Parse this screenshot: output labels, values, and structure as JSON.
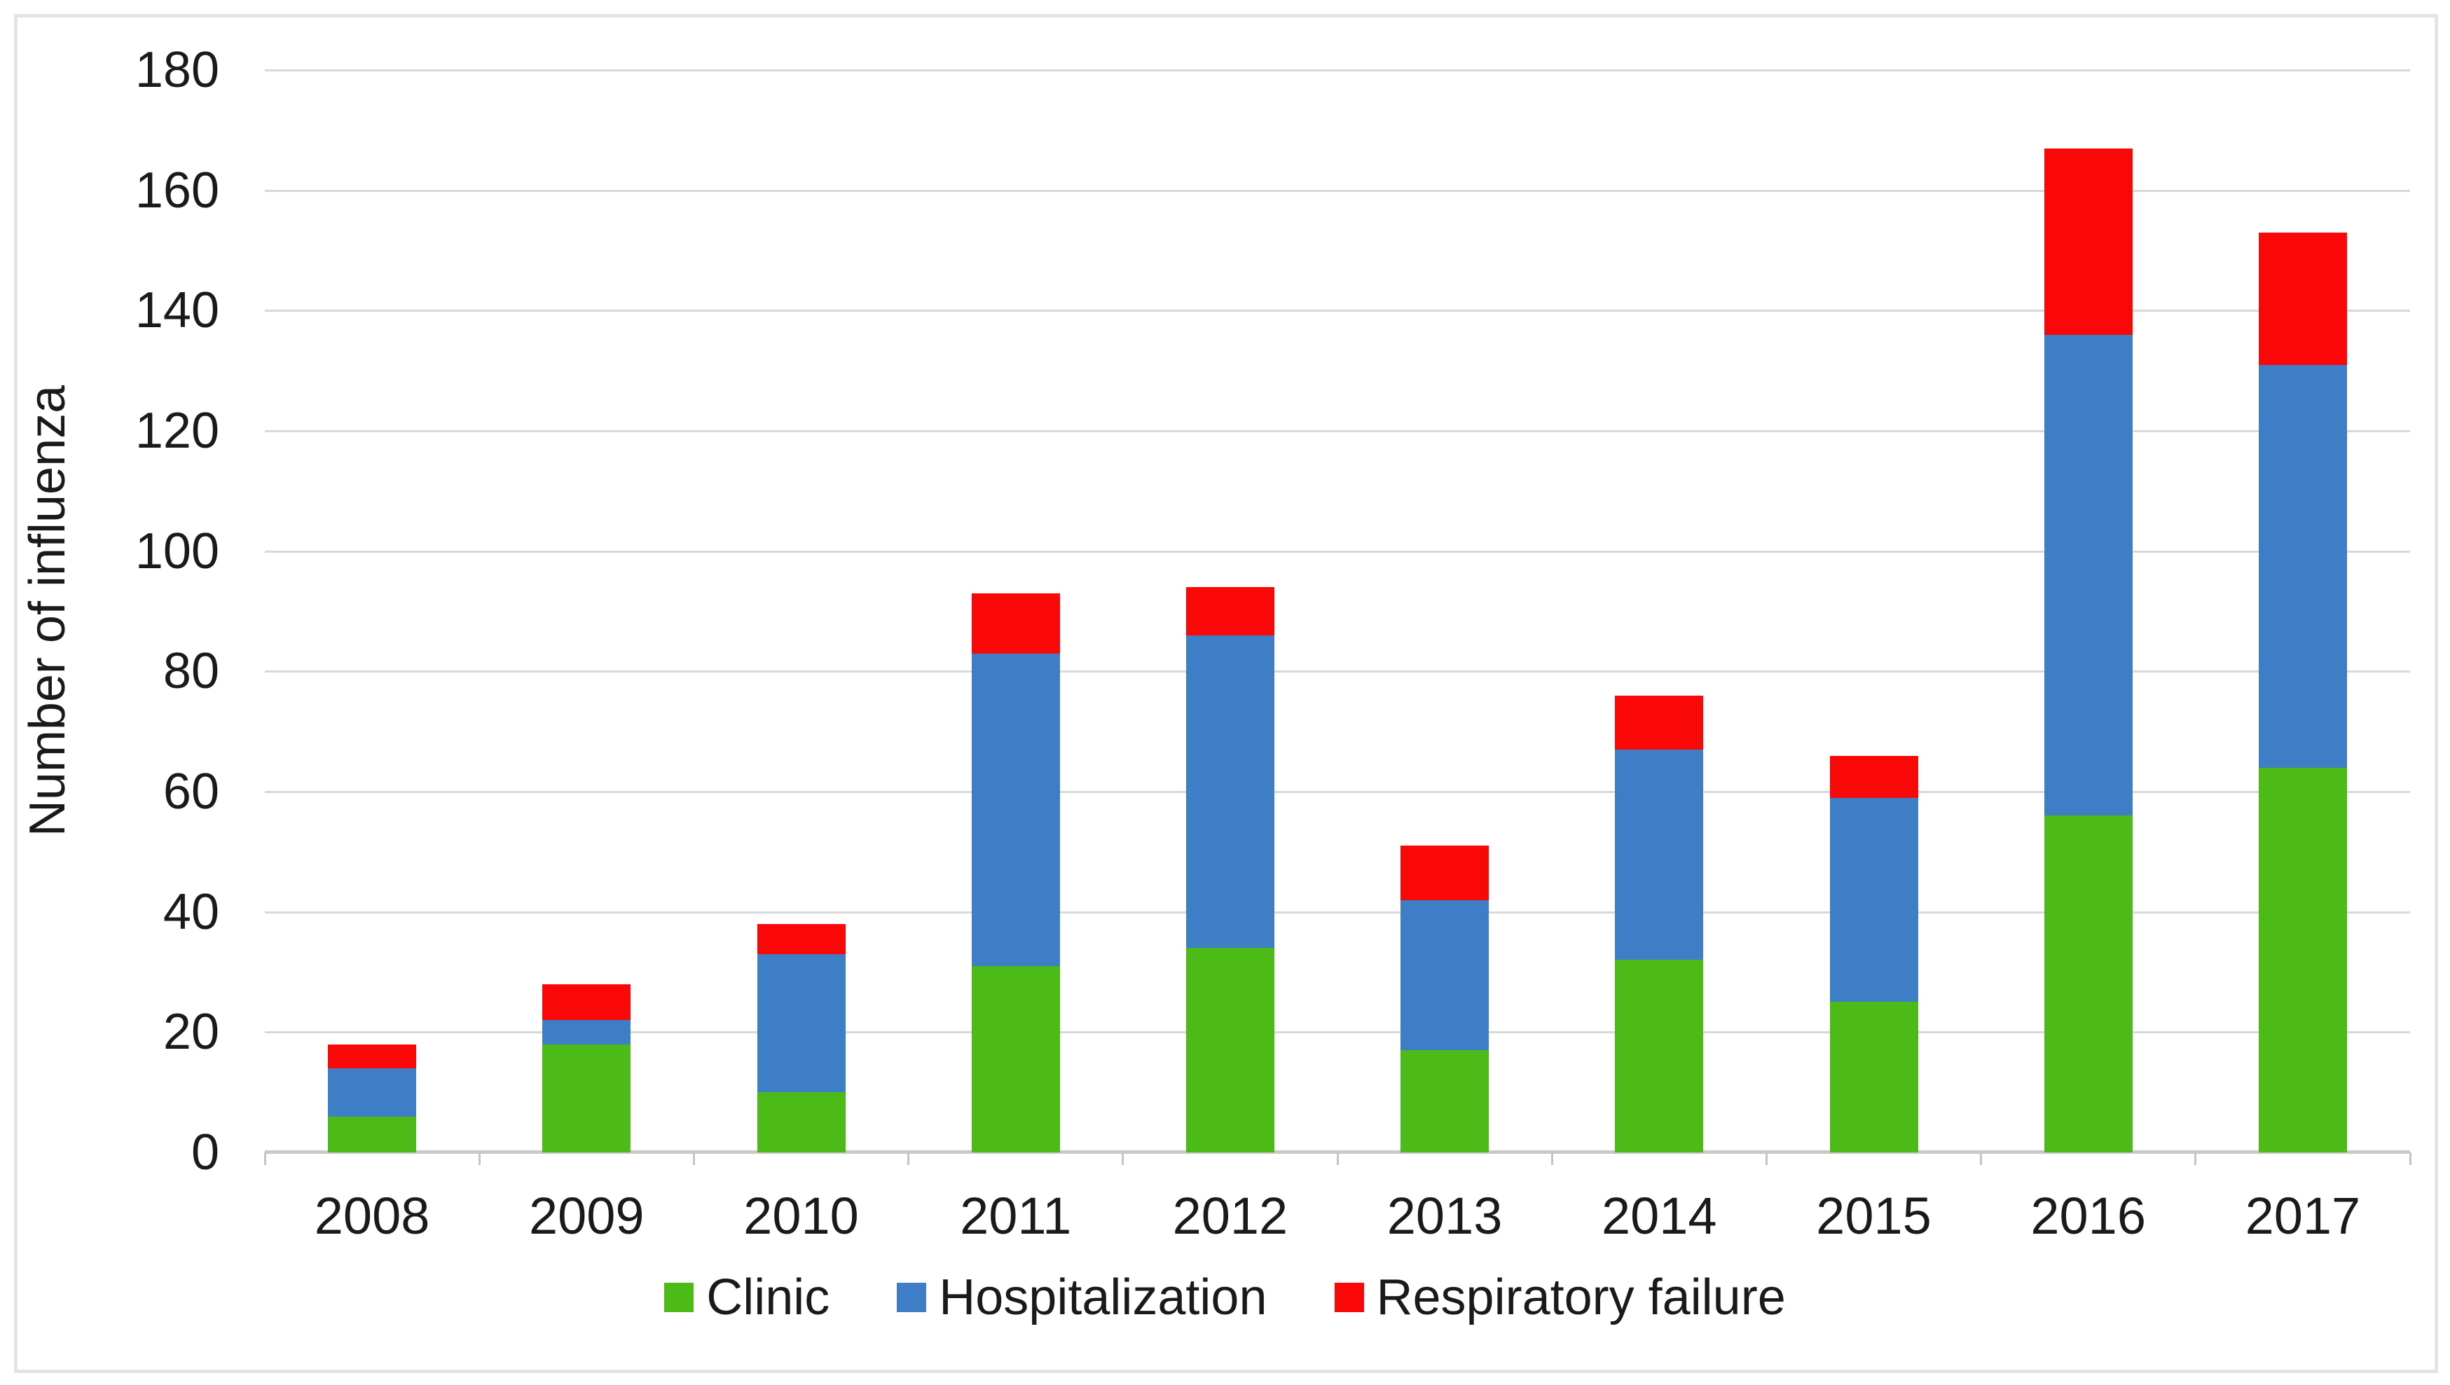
{
  "figure": {
    "ylabel": "Number of influenza"
  },
  "chart_data": {
    "type": "bar",
    "stacked": true,
    "title": "",
    "xlabel": "",
    "ylabel": "Number of influenza",
    "ylim": [
      0,
      180
    ],
    "ytick_step": 20,
    "grid": true,
    "legend_position": "bottom",
    "categories": [
      "2008",
      "2009",
      "2010",
      "2011",
      "2012",
      "2013",
      "2014",
      "2015",
      "2016",
      "2017"
    ],
    "series": [
      {
        "name": "Clinic",
        "color": "#4CBB17",
        "values": [
          6,
          18,
          10,
          31,
          34,
          17,
          32,
          25,
          56,
          64
        ]
      },
      {
        "name": "Hospitalization",
        "color": "#3E7EC6",
        "values": [
          8,
          4,
          23,
          52,
          52,
          25,
          35,
          34,
          80,
          67
        ]
      },
      {
        "name": "Respiratory failure",
        "color": "#FA0707",
        "values": [
          4,
          6,
          5,
          10,
          8,
          9,
          9,
          7,
          31,
          22
        ]
      }
    ],
    "stack_totals": [
      18,
      28,
      38,
      93,
      94,
      51,
      76,
      66,
      167,
      153
    ]
  },
  "style_colors": {
    "gridline": "#d8d8d8",
    "axis_line": "#c9c9c9",
    "frame_border": "#e4e4e4",
    "text": "#1a1a1a"
  }
}
